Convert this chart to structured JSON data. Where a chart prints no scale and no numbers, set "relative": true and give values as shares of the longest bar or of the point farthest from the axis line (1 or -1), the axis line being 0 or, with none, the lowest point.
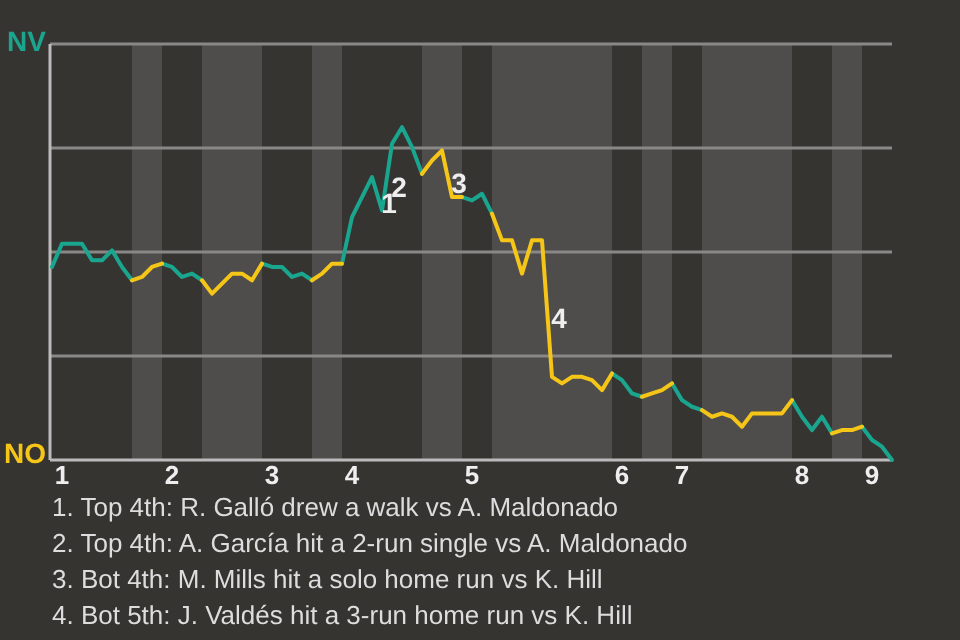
{
  "chart_data": {
    "type": "line",
    "relative": true,
    "categories": [
      null,
      "1",
      null,
      null,
      null,
      null,
      null,
      null,
      null,
      null,
      null,
      null,
      "2",
      null,
      null,
      null,
      null,
      null,
      null,
      null,
      null,
      null,
      "3",
      null,
      null,
      null,
      null,
      null,
      null,
      null,
      "4",
      null,
      null,
      null,
      null,
      null,
      null,
      null,
      null,
      null,
      null,
      null,
      "5",
      null,
      null,
      null,
      null,
      null,
      null,
      null,
      null,
      null,
      null,
      null,
      null,
      null,
      null,
      "6",
      null,
      null,
      null,
      null,
      null,
      "7",
      null,
      null,
      null,
      null,
      null,
      null,
      null,
      null,
      null,
      null,
      null,
      "8",
      null,
      null,
      null,
      null,
      null,
      null,
      "9",
      null,
      null
    ],
    "grid": "y",
    "legend": "left",
    "marker": "none",
    "line_style": "solid",
    "series": [
      {
        "name": "NV",
        "color": "#1aa58f",
        "values": [
          0.58,
          0.65,
          0.65,
          0.65,
          0.6,
          0.6,
          0.63,
          0.58,
          0.54,
          null,
          null,
          0.59,
          0.58,
          0.55,
          0.56,
          0.54,
          null,
          null,
          null,
          null,
          null,
          0.59,
          0.58,
          0.58,
          0.55,
          0.56,
          0.54,
          null,
          null,
          0.59,
          0.73,
          0.79,
          0.85,
          0.75,
          0.95,
          1,
          0.94,
          0.86,
          null,
          null,
          null,
          0.79,
          0.78,
          0.8,
          0.74,
          null,
          null,
          null,
          null,
          null,
          null,
          null,
          null,
          null,
          null,
          null,
          0.26,
          0.24,
          0.2,
          0.19,
          null,
          null,
          0.23,
          0.18,
          0.16,
          0.15,
          null,
          null,
          null,
          null,
          null,
          null,
          null,
          null,
          0.18,
          0.13,
          0.09,
          0.13,
          0.08,
          null,
          null,
          0.1,
          0.06,
          0.04,
          0
        ]
      },
      {
        "name": "NO",
        "color": "#f5c518",
        "values": [
          null,
          null,
          null,
          null,
          null,
          null,
          null,
          null,
          0.54,
          0.55,
          0.58,
          0.59,
          null,
          null,
          null,
          0.54,
          0.5,
          0.53,
          0.56,
          0.56,
          0.54,
          0.59,
          null,
          null,
          null,
          null,
          0.54,
          0.56,
          0.59,
          0.59,
          null,
          null,
          null,
          null,
          null,
          null,
          null,
          0.86,
          0.9,
          0.93,
          0.79,
          0.79,
          null,
          null,
          0.74,
          0.66,
          0.66,
          0.56,
          0.66,
          0.66,
          0.25,
          0.23,
          0.25,
          0.25,
          0.24,
          0.21,
          0.26,
          null,
          null,
          0.19,
          0.2,
          0.21,
          0.23,
          null,
          null,
          0.15,
          0.13,
          0.14,
          0.13,
          0.1,
          0.14,
          0.14,
          0.14,
          0.14,
          0.18,
          null,
          null,
          null,
          0.08,
          0.09,
          0.09,
          0.1,
          null,
          null,
          null
        ]
      }
    ],
    "annotations": [
      {
        "text": "1",
        "y": 0.75
      },
      {
        "text": "2",
        "y": 0.95
      },
      {
        "text": "3",
        "y": 0.79
      },
      {
        "text": "4",
        "y": 0.25
      },
      "1. Top 4th: R. Galló drew a walk vs A. Maldonado",
      "2. Top 4th: A. García hit a 2-run single vs A. Maldonado",
      "3. Bot 4th: M. Mills hit a solo home run vs K. Hill",
      "4. Bot 5th: J. Valdés hit a 3-run home run vs K. Hill"
    ]
  }
}
